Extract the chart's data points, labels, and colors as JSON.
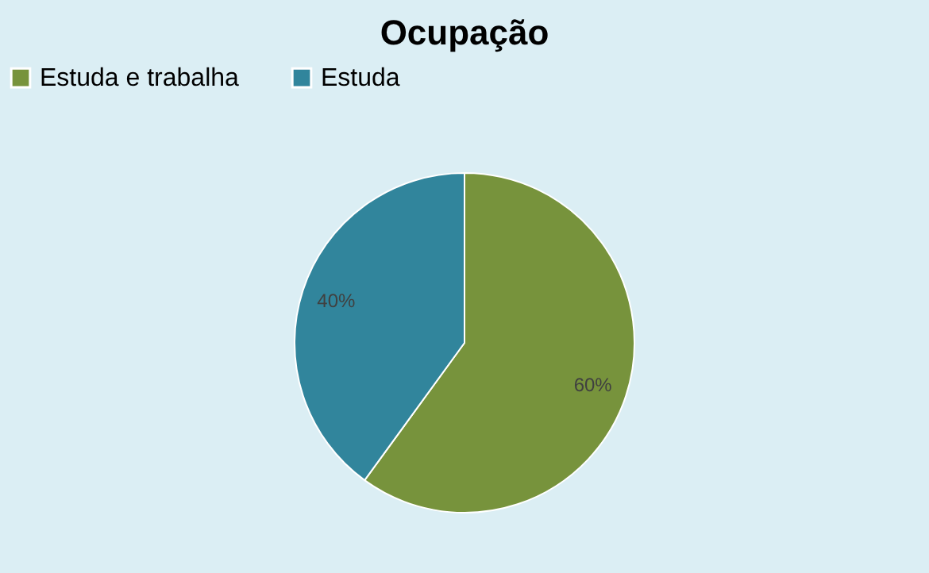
{
  "chart_data": {
    "type": "pie",
    "title": "Ocupação",
    "categories": [
      "Estuda e trabalha",
      "Estuda"
    ],
    "values": [
      60,
      40
    ],
    "colors": [
      "#77933c",
      "#31859c"
    ],
    "value_labels": [
      "60%",
      "40%"
    ],
    "legend": "top"
  }
}
